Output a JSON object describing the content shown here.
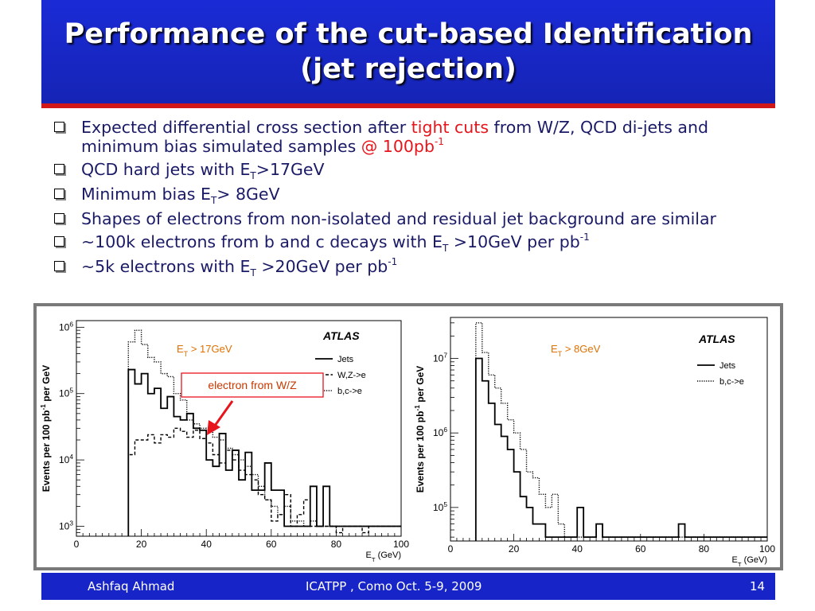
{
  "title": {
    "line1": "Performance of the cut-based Identification",
    "line2": "(jet rejection)"
  },
  "bullets": {
    "b1_a": "Expected differential cross section after ",
    "b1_tight": "tight cuts",
    "b1_b": " from W/Z, QCD di-jets and minimum bias simulated samples ",
    "b1_at": "@ 100pb",
    "b1_sup": "-1",
    "b2_a": "QCD hard jets with E",
    "b2_sub": "T",
    "b2_b": ">17GeV",
    "b3_a": "Minimum bias E",
    "b3_sub": "T",
    "b3_b": "> 8GeV",
    "b4": "Shapes of electrons from non-isolated and residual jet background are similar",
    "b5_a": "~100k electrons from b and c decays with E",
    "b5_sub": "T",
    "b5_b": " >10GeV per pb",
    "b5_sup": "-1",
    "b6_a": "~5k electrons with E",
    "b6_sub": "T",
    "b6_b": " >20GeV per pb",
    "b6_sup": "-1"
  },
  "footer": {
    "author": "Ashfaq Ahmad",
    "conference": "ICATPP , Como Oct.  5-9, 2009",
    "page": "14"
  },
  "colors": {
    "title_bg": "#1a2bd6",
    "title_rule": "#d01818",
    "bullet_text": "#1a1a66",
    "highlight": "#e8141c",
    "annotation": "#e07000",
    "footer_bg": "#1624c8"
  },
  "chart_data": [
    {
      "type": "line",
      "brand": "ATLAS",
      "cut_label_a": "E",
      "cut_label_sub": "T",
      "cut_label_b": " > 17GeV",
      "annotation": "electron from W/Z",
      "ylabel": "Events per 100 pb",
      "ylabel_sup": "-1",
      "ylabel_tail": " per GeV",
      "xlabel_a": "E",
      "xlabel_sub": "T",
      "xlabel_b": " (GeV)",
      "xlim": [
        0,
        100
      ],
      "ylim_log10": [
        2.85,
        6.1
      ],
      "xticks": [
        "0",
        "20",
        "40",
        "60",
        "80",
        "100"
      ],
      "yticks": [
        {
          "exp": 3,
          "label": "10",
          "sup": "3"
        },
        {
          "exp": 4,
          "label": "10",
          "sup": "4"
        },
        {
          "exp": 5,
          "label": "10",
          "sup": "5"
        },
        {
          "exp": 6,
          "label": "10",
          "sup": "6"
        }
      ],
      "bin_width": 2,
      "series": [
        {
          "name": "Jets",
          "style": "solid",
          "x_start": 16,
          "values": [
            230000,
            140000,
            200000,
            100000,
            120000,
            60000,
            90000,
            45000,
            40000,
            50000,
            30000,
            28000,
            10000,
            8000,
            25000,
            7000,
            14000,
            5000,
            13000,
            3500,
            3500,
            9000,
            3500,
            3500,
            1000,
            1000,
            1000,
            1000,
            4000,
            1000,
            4000,
            1000,
            1000,
            1000,
            1000,
            1000,
            1000,
            1000,
            1000,
            1000,
            1000,
            1000
          ]
        },
        {
          "name": "W,Z->e",
          "style": "dashed",
          "x_start": 16,
          "values": [
            12000,
            20000,
            20000,
            24000,
            18000,
            24000,
            22000,
            30000,
            27000,
            22000,
            28000,
            21000,
            18000,
            12000,
            9000,
            14000,
            10000,
            7000,
            6000,
            5000,
            3000,
            2500,
            1200,
            1500,
            3000,
            1000,
            1500,
            2500,
            1000,
            1000,
            1000,
            1000,
            800,
            1000,
            1000,
            1000,
            800,
            1000,
            1000,
            1000,
            1000,
            1000
          ]
        },
        {
          "name": "b,c->e",
          "style": "dotted",
          "x_start": 16,
          "values": [
            600000,
            900000,
            550000,
            350000,
            300000,
            200000,
            180000,
            100000,
            80000,
            40000,
            35000,
            30000,
            28000,
            22000,
            20000,
            15000,
            12000,
            10000,
            8000,
            6000,
            4000,
            2500,
            2000,
            1500,
            2000,
            1200,
            1200,
            1000,
            1200,
            1000,
            1000,
            1000,
            1000,
            1000,
            1000,
            1000,
            1000,
            1000,
            1000,
            1000,
            1000,
            1000
          ]
        }
      ]
    },
    {
      "type": "line",
      "brand": "ATLAS",
      "cut_label_a": "E",
      "cut_label_sub": "T",
      "cut_label_b": " > 8GeV",
      "ylabel": "Events per 100 pb",
      "ylabel_sup": "-1",
      "ylabel_tail": " per GeV",
      "xlabel_a": "E",
      "xlabel_sub": "T",
      "xlabel_b": " (GeV)",
      "xlim": [
        0,
        100
      ],
      "ylim_log10": [
        4.55,
        7.55
      ],
      "xticks": [
        "0",
        "20",
        "40",
        "60",
        "80",
        "100"
      ],
      "yticks": [
        {
          "exp": 5,
          "label": "10",
          "sup": "5"
        },
        {
          "exp": 6,
          "label": "10",
          "sup": "6"
        },
        {
          "exp": 7,
          "label": "10",
          "sup": "7"
        }
      ],
      "bin_width": 2,
      "series": [
        {
          "name": "Jets",
          "style": "solid",
          "x_start": 8,
          "values": [
            10000000,
            5000000,
            2500000,
            1300000,
            900000,
            600000,
            300000,
            140000,
            100000,
            60000,
            60000,
            40000,
            40000,
            40000,
            40000,
            40000,
            100000,
            40000,
            40000,
            60000,
            40000,
            40000,
            40000,
            40000,
            40000,
            40000,
            40000,
            40000,
            40000,
            40000,
            40000,
            40000,
            60000,
            40000,
            40000,
            40000,
            40000,
            40000,
            40000,
            40000,
            40000,
            40000,
            40000,
            40000,
            40000,
            40000
          ]
        },
        {
          "name": "b,c->e",
          "style": "dotted",
          "x_start": 8,
          "values": [
            30000000,
            12000000,
            6000000,
            4000000,
            2500000,
            1500000,
            1000000,
            600000,
            300000,
            250000,
            150000,
            100000,
            150000,
            60000,
            40000,
            40000,
            40000,
            40000,
            40000,
            60000,
            40000,
            40000,
            40000,
            40000,
            40000,
            40000,
            40000,
            40000,
            40000,
            40000,
            40000,
            40000,
            40000,
            40000,
            40000,
            40000,
            40000,
            40000,
            40000,
            40000,
            40000,
            40000,
            40000,
            40000,
            40000,
            40000
          ]
        }
      ]
    }
  ]
}
